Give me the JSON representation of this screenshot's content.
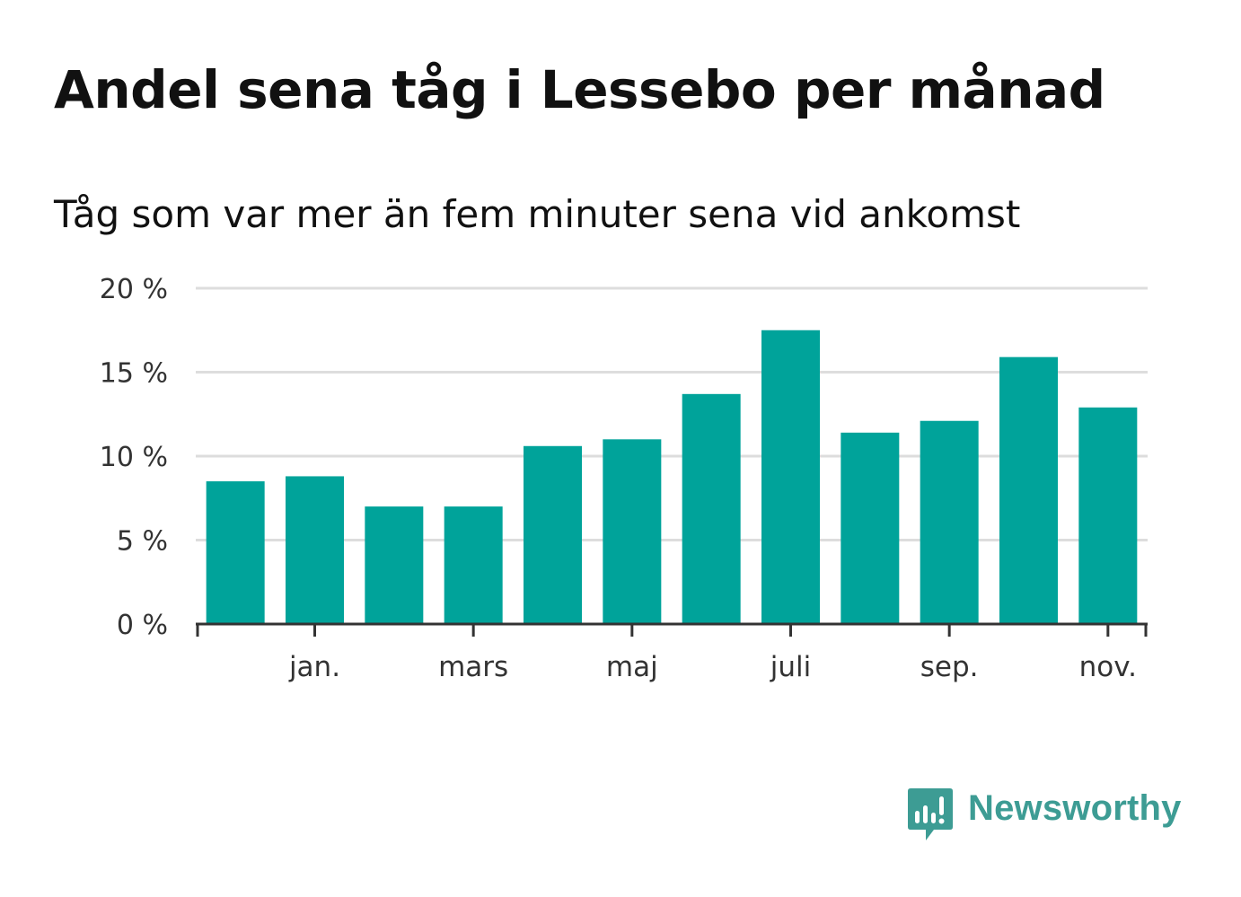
{
  "chart_data": {
    "type": "bar",
    "title": "Andel sena tåg i Lessebo per månad",
    "subtitle": "Tåg som var mer än fem minuter sena vid ankomst",
    "xlabel": "",
    "ylabel": "",
    "unit": "%",
    "ylim": [
      0,
      20
    ],
    "yticks": [
      0,
      5,
      10,
      15,
      20
    ],
    "ytick_labels": [
      "0 %",
      "5 %",
      "10 %",
      "15 %",
      "20 %"
    ],
    "xtick_labels": [
      "jan.",
      "mars",
      "maj",
      "juli",
      "sep.",
      "nov."
    ],
    "grid": true,
    "bar_color": "#00a39a",
    "series": [
      {
        "name": "Andel sena tåg",
        "values": [
          8.5,
          8.8,
          7.0,
          7.0,
          10.6,
          11.0,
          13.7,
          17.5,
          11.4,
          12.1,
          15.9,
          12.9
        ]
      }
    ]
  },
  "brand": {
    "name": "Newsworthy",
    "logo_icon": "newsworthy-logo-icon",
    "color": "#3d9c94"
  }
}
